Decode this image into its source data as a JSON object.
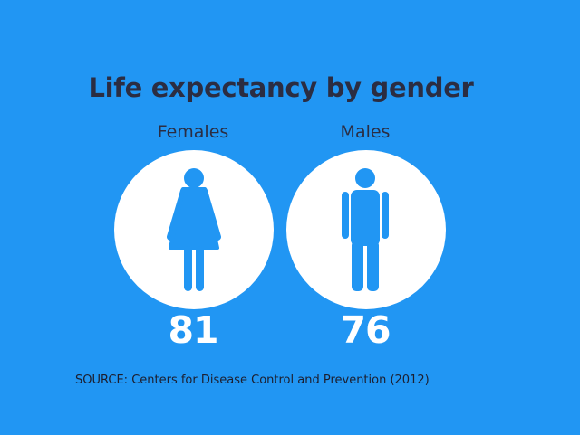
{
  "chart_data": {
    "type": "pictograph",
    "title": "Life expectancy by gender",
    "categories": [
      "Females",
      "Males"
    ],
    "values": [
      81,
      76
    ],
    "icons": [
      "female-figure-icon",
      "male-figure-icon"
    ],
    "source": "SOURCE: Centers for Disease Control and Prevention (2012)"
  },
  "colors": {
    "background": "#2196F3",
    "circle": "#ffffff",
    "icon": "#2196F3",
    "text_dark": "#2b2d42",
    "value_text": "#ffffff"
  }
}
